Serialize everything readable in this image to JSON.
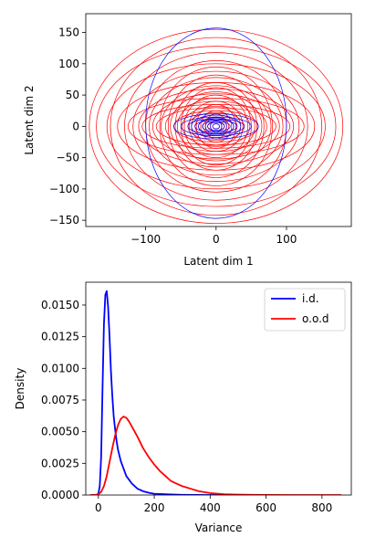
{
  "chart_data": [
    {
      "type": "scatter",
      "description_kind": "ellipses",
      "xlabel": "Latent dim 1",
      "ylabel": "Latent dim 2",
      "xlim": [
        -185,
        192
      ],
      "ylim": [
        -160,
        180
      ],
      "xticks": [
        -100,
        0,
        100
      ],
      "yticks": [
        -150,
        -100,
        -50,
        0,
        50,
        100,
        150
      ],
      "grid": false,
      "series": [
        {
          "color": "#ff0000",
          "ellipses": [
            {
              "cx": 0,
              "cy": 0,
              "rx": 180,
              "ry": 155
            },
            {
              "cx": 0,
              "cy": 0,
              "rx": 170,
              "ry": 128
            },
            {
              "cx": 0,
              "cy": 0,
              "rx": 155,
              "ry": 100
            },
            {
              "cx": 0,
              "cy": 0,
              "rx": 150,
              "ry": 142
            },
            {
              "cx": 0,
              "cy": 0,
              "rx": 140,
              "ry": 70
            },
            {
              "cx": 0,
              "cy": 0,
              "rx": 130,
              "ry": 118
            },
            {
              "cx": 0,
              "cy": 0,
              "rx": 125,
              "ry": 45
            },
            {
              "cx": 0,
              "cy": 0,
              "rx": 118,
              "ry": 88
            },
            {
              "cx": 0,
              "cy": 0,
              "rx": 110,
              "ry": 60
            },
            {
              "cx": 0,
              "cy": 0,
              "rx": 105,
              "ry": 35
            },
            {
              "cx": 0,
              "cy": 0,
              "rx": 100,
              "ry": 105
            },
            {
              "cx": 0,
              "cy": 0,
              "rx": 95,
              "ry": 78
            },
            {
              "cx": 0,
              "cy": 0,
              "rx": 90,
              "ry": 52
            },
            {
              "cx": 0,
              "cy": 0,
              "rx": 85,
              "ry": 30
            },
            {
              "cx": 0,
              "cy": 0,
              "rx": 80,
              "ry": 95
            },
            {
              "cx": 0,
              "cy": 0,
              "rx": 78,
              "ry": 65
            },
            {
              "cx": 0,
              "cy": 0,
              "rx": 72,
              "ry": 40
            },
            {
              "cx": 0,
              "cy": 0,
              "rx": 68,
              "ry": 82
            },
            {
              "cx": 0,
              "cy": 0,
              "rx": 65,
              "ry": 55
            },
            {
              "cx": 0,
              "cy": 0,
              "rx": 60,
              "ry": 25
            },
            {
              "cx": 0,
              "cy": 0,
              "rx": 58,
              "ry": 70
            },
            {
              "cx": 0,
              "cy": 0,
              "rx": 55,
              "ry": 45
            },
            {
              "cx": 0,
              "cy": 0,
              "rx": 50,
              "ry": 62
            },
            {
              "cx": 0,
              "cy": 0,
              "rx": 48,
              "ry": 32
            },
            {
              "cx": 0,
              "cy": 0,
              "rx": 45,
              "ry": 50
            },
            {
              "cx": 0,
              "cy": 0,
              "rx": 40,
              "ry": 22
            },
            {
              "cx": 0,
              "cy": 0,
              "rx": 38,
              "ry": 40
            },
            {
              "cx": 0,
              "cy": 0,
              "rx": 35,
              "ry": 30
            },
            {
              "cx": 0,
              "cy": 0,
              "rx": 30,
              "ry": 18
            },
            {
              "cx": 0,
              "cy": 0,
              "rx": 28,
              "ry": 35
            },
            {
              "cx": 0,
              "cy": 0,
              "rx": 25,
              "ry": 12
            },
            {
              "cx": 0,
              "cy": 0,
              "rx": 22,
              "ry": 25
            },
            {
              "cx": 0,
              "cy": 0,
              "rx": 18,
              "ry": 15
            },
            {
              "cx": 0,
              "cy": 0,
              "rx": 15,
              "ry": 20
            },
            {
              "cx": 0,
              "cy": 0,
              "rx": 12,
              "ry": 8
            },
            {
              "cx": 0,
              "cy": 0,
              "rx": 8,
              "ry": 10
            },
            {
              "cx": 0,
              "cy": 0,
              "rx": 5,
              "ry": 4
            }
          ]
        },
        {
          "color": "#0000ff",
          "ellipses": [
            {
              "cx": 0,
              "cy": 5,
              "rx": 100,
              "ry": 152
            },
            {
              "cx": 0,
              "cy": 0,
              "rx": 60,
              "ry": 20
            },
            {
              "cx": 0,
              "cy": 0,
              "rx": 50,
              "ry": 15
            },
            {
              "cx": 0,
              "cy": 0,
              "rx": 40,
              "ry": 12
            },
            {
              "cx": 0,
              "cy": 0,
              "rx": 35,
              "ry": 18
            },
            {
              "cx": 0,
              "cy": 0,
              "rx": 30,
              "ry": 10
            },
            {
              "cx": 0,
              "cy": 0,
              "rx": 25,
              "ry": 14
            },
            {
              "cx": 0,
              "cy": 0,
              "rx": 20,
              "ry": 8
            },
            {
              "cx": 0,
              "cy": 0,
              "rx": 15,
              "ry": 12
            },
            {
              "cx": 0,
              "cy": 0,
              "rx": 12,
              "ry": 6
            },
            {
              "cx": 0,
              "cy": 0,
              "rx": 8,
              "ry": 9
            },
            {
              "cx": 0,
              "cy": 0,
              "rx": 5,
              "ry": 4
            }
          ]
        }
      ]
    },
    {
      "type": "line",
      "xlabel": "Variance",
      "ylabel": "Density",
      "xlim": [
        -45,
        905
      ],
      "ylim": [
        0,
        0.0168
      ],
      "xticks": [
        0,
        200,
        400,
        600,
        800
      ],
      "yticks": [
        0.0,
        0.0025,
        0.005,
        0.0075,
        0.01,
        0.0125,
        0.015
      ],
      "ytick_labels": [
        "0.0000",
        "0.0025",
        "0.0050",
        "0.0075",
        "0.0100",
        "0.0125",
        "0.0150"
      ],
      "grid": false,
      "legend_position": "top-right",
      "series": [
        {
          "name": "i.d.",
          "color": "#0000ff",
          "x": [
            -5,
            0,
            5,
            10,
            15,
            20,
            25,
            30,
            35,
            40,
            45,
            50,
            55,
            60,
            65,
            70,
            80,
            90,
            100,
            120,
            140,
            160,
            180,
            200,
            250,
            300,
            350,
            400,
            450
          ],
          "y": [
            0.0,
            0.0001,
            0.0007,
            0.003,
            0.0085,
            0.0135,
            0.0158,
            0.0161,
            0.0148,
            0.0125,
            0.0098,
            0.0078,
            0.0062,
            0.0052,
            0.0043,
            0.0036,
            0.0027,
            0.0021,
            0.0015,
            0.0009,
            0.0005,
            0.0003,
            0.00018,
            0.0001,
            5e-05,
            2e-05,
            1e-05,
            0.0,
            0.0
          ]
        },
        {
          "name": "o.o.d",
          "color": "#ff0000",
          "x": [
            -30,
            -10,
            0,
            10,
            20,
            30,
            40,
            50,
            60,
            70,
            80,
            90,
            100,
            110,
            120,
            140,
            160,
            180,
            200,
            220,
            240,
            260,
            280,
            300,
            330,
            360,
            400,
            450,
            500,
            550,
            600,
            700,
            800,
            870
          ],
          "y": [
            0.0,
            2e-05,
            6e-05,
            0.00025,
            0.0007,
            0.0015,
            0.0026,
            0.0037,
            0.0047,
            0.0055,
            0.006,
            0.0062,
            0.0061,
            0.0058,
            0.0054,
            0.0046,
            0.0037,
            0.003,
            0.0024,
            0.0019,
            0.0015,
            0.0011,
            0.0009,
            0.0007,
            0.0005,
            0.0003,
            0.00015,
            6e-05,
            3e-05,
            2e-05,
            1e-05,
            0.0,
            0.0,
            0.0
          ]
        }
      ]
    }
  ]
}
